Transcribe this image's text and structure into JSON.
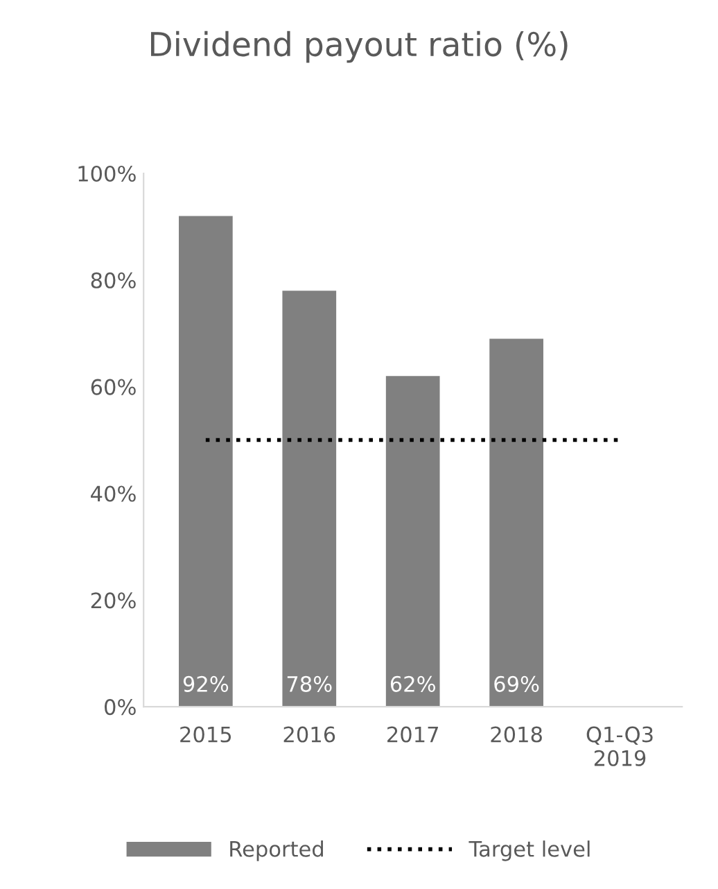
{
  "chart_data": {
    "type": "bar",
    "title": "Dividend payout ratio (%)",
    "categories": [
      "2015",
      "2016",
      "2017",
      "2018",
      "Q1-Q3\n2019"
    ],
    "series": [
      {
        "name": "Reported",
        "color": "#808080",
        "values": [
          92,
          78,
          62,
          69,
          null
        ],
        "value_labels": [
          "92%",
          "78%",
          "62%",
          "69%",
          null
        ]
      },
      {
        "name": "Target level",
        "type": "line",
        "color": "#000000",
        "line_style": "dotted",
        "values": [
          50,
          50,
          50,
          50,
          50
        ]
      }
    ],
    "ylim": [
      0,
      100
    ],
    "yticks": [
      {
        "value": 0,
        "label": "0%"
      },
      {
        "value": 20,
        "label": "20%"
      },
      {
        "value": 40,
        "label": "40%"
      },
      {
        "value": 60,
        "label": "60%"
      },
      {
        "value": 80,
        "label": "80%"
      },
      {
        "value": 100,
        "label": "100%"
      }
    ],
    "grid": false,
    "legend": "bottom"
  }
}
